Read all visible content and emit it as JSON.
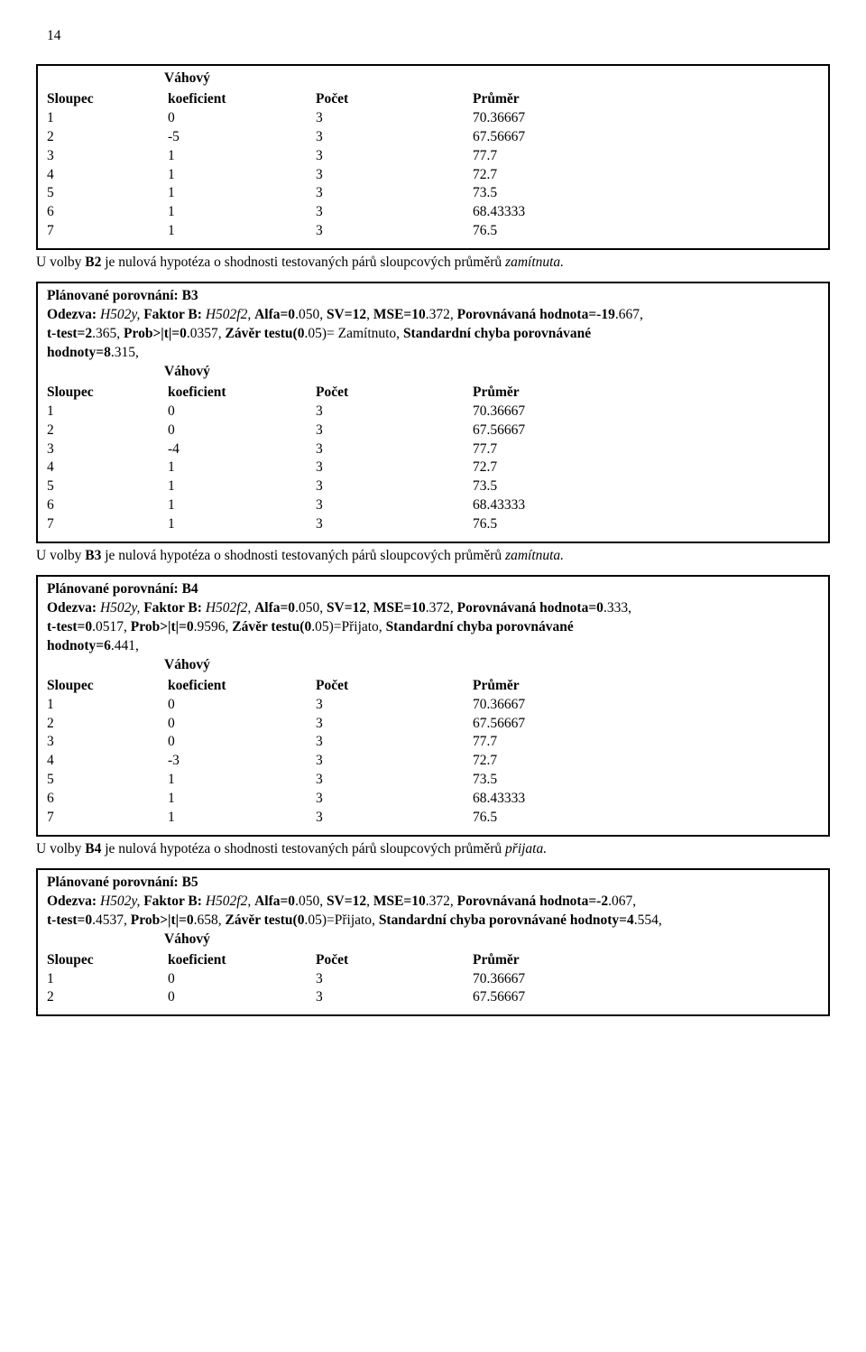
{
  "page_number": "14",
  "vahovy_label": "Váhový",
  "header": {
    "sloupec": "Sloupec",
    "koef": "koeficient",
    "pocet": "Počet",
    "prumer": "Průměr"
  },
  "table1_rows": [
    [
      "1",
      "0",
      "3",
      "70.36667"
    ],
    [
      "2",
      "-5",
      "3",
      "67.56667"
    ],
    [
      "3",
      "1",
      "3",
      "77.7"
    ],
    [
      "4",
      "1",
      "3",
      "72.7"
    ],
    [
      "5",
      "1",
      "3",
      "73.5"
    ],
    [
      "6",
      "1",
      "3",
      "68.43333"
    ],
    [
      "7",
      "1",
      "3",
      "76.5"
    ]
  ],
  "conc": {
    "pre": "U volby ",
    "b2": "B2",
    "b3": "B3",
    "b4": "B4",
    "mid": " je nulová hypotéza o shodnosti testovaných párů sloupcových průměrů ",
    "zamitnuta": "zamítnuta.",
    "prijata": "přijata."
  },
  "box3": {
    "title": "Plánované porovnání: B3",
    "l2a": "Odezva:",
    "l2b": "H502y,",
    "l2c": "Faktor B:",
    "l2d": "H502f2,",
    "l2e": "Alfa=0",
    "l2f": ".050,",
    "l2g": "SV=12",
    "l2h": ",",
    "l2i": "MSE=10",
    "l2j": ".372,",
    "l2k": "Porovnávaná hodnota=-19",
    "l2l": ".667,",
    "l3a": "t-test=2",
    "l3b": ".365,",
    "l3c": "Prob>|t|=0",
    "l3d": ".0357,",
    "l3e": "Závěr testu(0",
    "l3f": ".05)= Zamítnuto,",
    "l3g": "Standardní chyba porovnávané",
    "l4a": "hodnoty=8",
    "l4b": ".315,"
  },
  "table3_rows": [
    [
      "1",
      "0",
      "3",
      "70.36667"
    ],
    [
      "2",
      "0",
      "3",
      "67.56667"
    ],
    [
      "3",
      "-4",
      "3",
      "77.7"
    ],
    [
      "4",
      "1",
      "3",
      "72.7"
    ],
    [
      "5",
      "1",
      "3",
      "73.5"
    ],
    [
      "6",
      "1",
      "3",
      "68.43333"
    ],
    [
      "7",
      "1",
      "3",
      "76.5"
    ]
  ],
  "box4": {
    "title": "Plánované porovnání:  B4",
    "l2a": "Odezva:",
    "l2b": "H502y,",
    "l2c": "Faktor B:",
    "l2d": "H502f2,",
    "l2e": "Alfa=0",
    "l2f": ".050,",
    "l2g": "SV=12",
    "l2h": ",",
    "l2i": "MSE=10",
    "l2j": ".372,",
    "l2k": "Porovnávaná hodnota=0",
    "l2l": ".333,",
    "l3a": "t-test=0",
    "l3b": ".0517,",
    "l3c": "Prob>|t|=0",
    "l3d": ".9596,",
    "l3e": "Závěr testu(0",
    "l3f": ".05)=Přijato,",
    "l3g": "Standardní chyba porovnávané",
    "l4a": "hodnoty=6",
    "l4b": ".441,"
  },
  "table4_rows": [
    [
      "1",
      "0",
      "3",
      "70.36667"
    ],
    [
      "2",
      "0",
      "3",
      "67.56667"
    ],
    [
      "3",
      "0",
      "3",
      "77.7"
    ],
    [
      "4",
      "-3",
      "3",
      "72.7"
    ],
    [
      "5",
      "1",
      "3",
      "73.5"
    ],
    [
      "6",
      "1",
      "3",
      "68.43333"
    ],
    [
      "7",
      "1",
      "3",
      "76.5"
    ]
  ],
  "box5": {
    "title": "Plánované porovnání: B5",
    "l2a": "Odezva:",
    "l2b": "H502y,",
    "l2c": "Faktor B:",
    "l2d": "H502f2,",
    "l2e": "Alfa=0",
    "l2f": ".050,",
    "l2g": "SV=12",
    "l2h": ",",
    "l2i": "MSE=10",
    "l2j": ".372,",
    "l2k": "Porovnávaná hodnota=-2",
    "l2l": ".067,",
    "l3a": "t-test=0",
    "l3b": ".4537,",
    "l3c": "Prob>|t|=0",
    "l3d": ".658,",
    "l3e": "Závěr testu(0",
    "l3f": ".05)=Přijato,",
    "l3g": "Standardní  chyba  porovnávané  hodnoty=4",
    "l3h": ".554,"
  },
  "table5_rows": [
    [
      "1",
      "0",
      "3",
      "70.36667"
    ],
    [
      "2",
      "0",
      "3",
      "67.56667"
    ]
  ]
}
